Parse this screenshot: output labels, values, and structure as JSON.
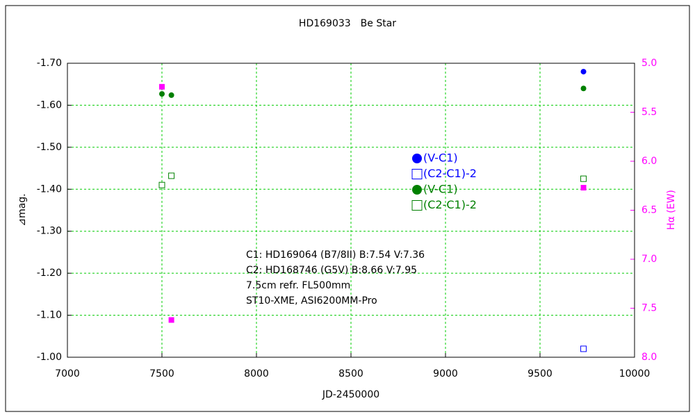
{
  "chart_data": {
    "type": "scatter",
    "title": "HD169033　Be Star",
    "xlabel": "JD-2450000",
    "ylabel": "⊿mag.",
    "y2label": "Hα (EW)",
    "xlim": [
      7000,
      10000
    ],
    "xticks": [
      7000,
      7500,
      8000,
      8500,
      9000,
      9500,
      10000
    ],
    "ylim": [
      -1.0,
      -1.7
    ],
    "yticks": [
      {
        "value": -1.0,
        "label": "-1.00"
      },
      {
        "value": -1.1,
        "label": "-1.10"
      },
      {
        "value": -1.2,
        "label": "-1.20"
      },
      {
        "value": -1.3,
        "label": "-1.30"
      },
      {
        "value": -1.4,
        "label": "-1.40"
      },
      {
        "value": -1.5,
        "label": "-1.50"
      },
      {
        "value": -1.6,
        "label": "-1.60"
      },
      {
        "value": -1.7,
        "label": "-1.70"
      }
    ],
    "y2lim": [
      8.0,
      5.0
    ],
    "y2ticks": [
      {
        "value": 8,
        "label": "8.0"
      },
      7.5,
      {
        "value": 7,
        "label": "7.0"
      },
      6.5,
      {
        "value": 6,
        "label": "6.0"
      },
      5.5,
      {
        "value": 5,
        "label": "5.0"
      }
    ],
    "grid": true,
    "series": [
      {
        "name": "(V-C1)",
        "color": "#0000ff",
        "marker": "circle",
        "x": [
          9730
        ],
        "values": [
          -1.68
        ]
      },
      {
        "name": "(C2-C1)-2",
        "color": "#0000ff",
        "marker": "square-open",
        "x": [
          9730
        ],
        "values": [
          -1.02
        ]
      },
      {
        "name": "(V-C1)",
        "color": "#008000",
        "marker": "circle",
        "x": [
          7500,
          7550,
          9730
        ],
        "values": [
          -1.627,
          -1.624,
          -1.64
        ]
      },
      {
        "name": "(C2-C1)-2",
        "color": "#008000",
        "marker": "square-open",
        "x": [
          7500,
          7550,
          9730
        ],
        "values": [
          -1.41,
          -1.432,
          -1.425
        ]
      },
      {
        "color": "#ff00ff",
        "marker": "square",
        "axis": "y2",
        "x": [
          7500,
          7550,
          9730
        ],
        "values": [
          5.24,
          7.62,
          6.27
        ]
      }
    ],
    "annotations": [
      "C1: HD169064 (B7/8II)  B:7.54  V:7.36",
      "C2: HD168746 (G5V)  B:8.66  V:7.95",
      "7.5cm refr. FL500mm",
      "ST10-XME, ASI6200MM-Pro"
    ]
  }
}
